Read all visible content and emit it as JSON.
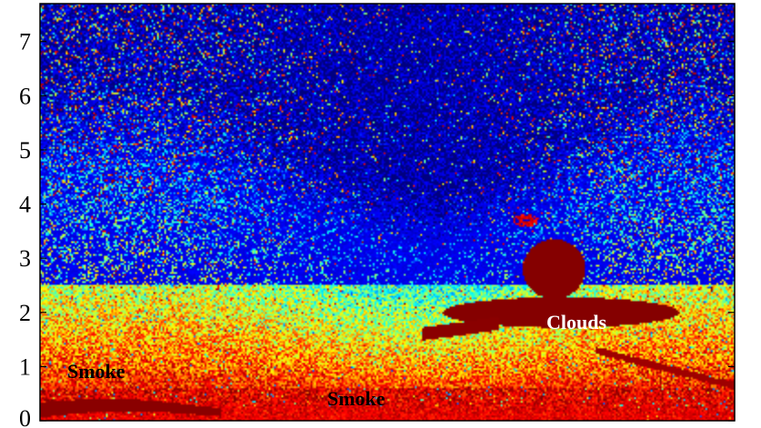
{
  "chart_data": {
    "type": "heatmap",
    "title": "",
    "xlabel": "",
    "ylabel": "",
    "ylim": [
      0,
      7.7
    ],
    "y_ticks": [
      {
        "value": 0,
        "label": "0"
      },
      {
        "value": 1,
        "label": "1"
      },
      {
        "value": 2,
        "label": "2"
      },
      {
        "value": 3,
        "label": "3"
      },
      {
        "value": 4,
        "label": "4"
      },
      {
        "value": 5,
        "label": "5"
      },
      {
        "value": 6,
        "label": "6"
      },
      {
        "value": 7,
        "label": "7"
      }
    ],
    "x_ticks_visible": false,
    "grid": false,
    "colormap": "jet",
    "colors": {
      "low": "#00008f",
      "mid": "#19c8dc",
      "high": "#ffff3c",
      "max": "#800000",
      "annotation_dark": "#000000",
      "annotation_light": "#ffffff"
    },
    "features": [
      {
        "name": "smoke-layer-left",
        "y_range": [
          0.05,
          0.35
        ]
      },
      {
        "name": "cloud-layer",
        "y_range": [
          1.3,
          3.3
        ]
      }
    ],
    "annotations": [
      {
        "text": "Smoke",
        "color": "#000000"
      },
      {
        "text": "Smoke",
        "color": "#000000"
      },
      {
        "text": "Clouds",
        "color": "#ffffff"
      }
    ]
  }
}
